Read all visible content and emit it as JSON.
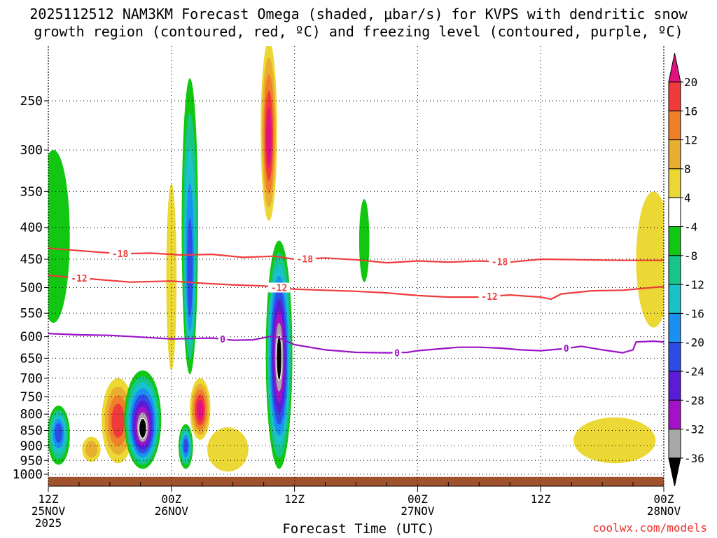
{
  "header": {
    "title_line1": "2025112512 NAM3KM Forecast Omega (shaded, μbar/s) for KVPS with dendritic snow",
    "title_line2": "growth region (contoured, red, ºC) and freezing level (contoured, purple, ºC)"
  },
  "footer": {
    "credit": "coolwx.com/models"
  },
  "chart_data": {
    "type": "time-height contour",
    "title": "2025112512 NAM3KM Forecast Omega (shaded, μbar/s) for KVPS with dendritic snow growth region (contoured, red, ºC) and freezing level (contoured, purple, ºC)",
    "xlabel": "Forecast Time (UTC)",
    "ylabel": "",
    "x_range_hours": [
      0,
      60
    ],
    "y_axis": {
      "scale": "log-pressure",
      "range": [
        1050,
        200
      ],
      "ticks": [
        250,
        300,
        350,
        400,
        450,
        500,
        550,
        600,
        650,
        700,
        750,
        800,
        850,
        900,
        950,
        1000
      ]
    },
    "x_ticks": [
      {
        "hour": 0,
        "l1": "12Z",
        "l2": "25NOV",
        "l3": "2025"
      },
      {
        "hour": 12,
        "l1": "00Z",
        "l2": "26NOV",
        "l3": ""
      },
      {
        "hour": 24,
        "l1": "12Z",
        "l2": "",
        "l3": ""
      },
      {
        "hour": 36,
        "l1": "00Z",
        "l2": "27NOV",
        "l3": ""
      },
      {
        "hour": 48,
        "l1": "12Z",
        "l2": "",
        "l3": ""
      },
      {
        "hour": 60,
        "l1": "00Z",
        "l2": "28NOV",
        "l3": ""
      }
    ],
    "colorbar": {
      "levels": [
        20,
        16,
        12,
        8,
        4,
        -4,
        -8,
        -12,
        -16,
        -20,
        -24,
        -28,
        -32,
        -36
      ],
      "bins": [
        {
          "range": ">20",
          "color": "#e0127f"
        },
        {
          "range": "16 to 20",
          "color": "#f13a3a"
        },
        {
          "range": "12 to 16",
          "color": "#f07f2a"
        },
        {
          "range": "8 to 12",
          "color": "#e9ae2f"
        },
        {
          "range": "4 to 8",
          "color": "#ebd835"
        },
        {
          "range": "-4 to 4",
          "color": "#ffffff"
        },
        {
          "range": "-8 to -4",
          "color": "#11c711"
        },
        {
          "range": "-12 to -8",
          "color": "#17c489"
        },
        {
          "range": "-16 to -12",
          "color": "#19c2c8"
        },
        {
          "range": "-20 to -16",
          "color": "#1a90f0"
        },
        {
          "range": "-24 to -20",
          "color": "#2d4de6"
        },
        {
          "range": "-28 to -24",
          "color": "#5a1cd6"
        },
        {
          "range": "-32 to -28",
          "color": "#a312c7"
        },
        {
          "range": "-36 to -32",
          "color": "#a8a8a8"
        },
        {
          "range": "<-36",
          "color": "#000000"
        }
      ]
    },
    "omega_features": [
      {
        "hour": 0.5,
        "pressure": 460,
        "value": -6,
        "hw_hours": 1.6,
        "h_top_hpa": 300,
        "h_bot_hpa": 570
      },
      {
        "hour": 1.0,
        "pressure": 855,
        "value": -21,
        "hw_hours": 1.1,
        "h_top_hpa": 775,
        "h_bot_hpa": 965
      },
      {
        "hour": 4.2,
        "pressure": 910,
        "value": 10,
        "hw_hours": 0.9,
        "h_top_hpa": 870,
        "h_bot_hpa": 955
      },
      {
        "hour": 6.8,
        "pressure": 820,
        "value": 17,
        "hw_hours": 1.6,
        "h_top_hpa": 700,
        "h_bot_hpa": 960
      },
      {
        "hour": 9.2,
        "pressure": 850,
        "value": -40,
        "hw_hours": 1.8,
        "h_top_hpa": 680,
        "h_bot_hpa": 980
      },
      {
        "hour": 12.0,
        "pressure": 440,
        "value": 6,
        "hw_hours": 0.5,
        "h_top_hpa": 340,
        "h_bot_hpa": 680
      },
      {
        "hour": 13.8,
        "pressure": 500,
        "value": -24,
        "hw_hours": 0.8,
        "h_top_hpa": 230,
        "h_bot_hpa": 690
      },
      {
        "hour": 13.4,
        "pressure": 900,
        "value": -22,
        "hw_hours": 0.7,
        "h_top_hpa": 830,
        "h_bot_hpa": 980
      },
      {
        "hour": 14.8,
        "pressure": 790,
        "value": 21,
        "hw_hours": 1.0,
        "h_top_hpa": 700,
        "h_bot_hpa": 880
      },
      {
        "hour": 17.5,
        "pressure": 930,
        "value": 7,
        "hw_hours": 2.0,
        "h_top_hpa": 840,
        "h_bot_hpa": 990
      },
      {
        "hour": 21.5,
        "pressure": 290,
        "value": 22,
        "hw_hours": 0.8,
        "h_top_hpa": 200,
        "h_bot_hpa": 390
      },
      {
        "hour": 22.5,
        "pressure": 650,
        "value": -40,
        "hw_hours": 1.3,
        "h_top_hpa": 420,
        "h_bot_hpa": 980
      },
      {
        "hour": 30.8,
        "pressure": 450,
        "value": -6,
        "hw_hours": 0.5,
        "h_top_hpa": 360,
        "h_bot_hpa": 490
      },
      {
        "hour": 55.2,
        "pressure": 870,
        "value": 6,
        "hw_hours": 4.0,
        "h_top_hpa": 810,
        "h_bot_hpa": 960
      },
      {
        "hour": 59.0,
        "pressure": 440,
        "value": 6,
        "hw_hours": 1.7,
        "h_top_hpa": 350,
        "h_bot_hpa": 580
      }
    ],
    "series": [
      {
        "name": "-18 °C isotherm",
        "color": "#ef3b3b",
        "points": [
          [
            0,
            432
          ],
          [
            3,
            436
          ],
          [
            7,
            441
          ],
          [
            10,
            440
          ],
          [
            13,
            443
          ],
          [
            16,
            442
          ],
          [
            19,
            447
          ],
          [
            22,
            445
          ],
          [
            24,
            450
          ],
          [
            27,
            448
          ],
          [
            30,
            451
          ],
          [
            33,
            456
          ],
          [
            36,
            453
          ],
          [
            39,
            455
          ],
          [
            42,
            453
          ],
          [
            45,
            455
          ],
          [
            48,
            450
          ],
          [
            52,
            451
          ],
          [
            56,
            452
          ],
          [
            60,
            452
          ]
        ],
        "labels": [
          {
            "hour": 7,
            "text": "-18"
          },
          {
            "hour": 25,
            "text": "-18"
          },
          {
            "hour": 44,
            "text": "-18"
          }
        ]
      },
      {
        "name": "-12 °C isotherm",
        "color": "#ef3b3b",
        "points": [
          [
            0,
            478
          ],
          [
            4,
            484
          ],
          [
            8,
            490
          ],
          [
            12,
            488
          ],
          [
            15,
            492
          ],
          [
            18,
            495
          ],
          [
            21,
            497
          ],
          [
            24,
            503
          ],
          [
            27,
            505
          ],
          [
            30,
            507
          ],
          [
            33,
            510
          ],
          [
            36,
            515
          ],
          [
            39,
            518
          ],
          [
            42,
            518
          ],
          [
            45,
            514
          ],
          [
            48,
            518
          ],
          [
            49,
            522
          ],
          [
            50,
            512
          ],
          [
            53,
            506
          ],
          [
            56,
            505
          ],
          [
            60,
            498
          ]
        ],
        "labels": [
          {
            "hour": 3,
            "text": "-12"
          },
          {
            "hour": 22.5,
            "text": "-12"
          },
          {
            "hour": 43,
            "text": "-12"
          }
        ]
      },
      {
        "name": "0 °C freezing level",
        "color": "#9b13c9",
        "points": [
          [
            0,
            593
          ],
          [
            3,
            596
          ],
          [
            6,
            597
          ],
          [
            9,
            601
          ],
          [
            12,
            605
          ],
          [
            14,
            604
          ],
          [
            16,
            603
          ],
          [
            18,
            608
          ],
          [
            20,
            607
          ],
          [
            22,
            598
          ],
          [
            24,
            618
          ],
          [
            27,
            630
          ],
          [
            30,
            636
          ],
          [
            33,
            637
          ],
          [
            35,
            636
          ],
          [
            36,
            632
          ],
          [
            38,
            628
          ],
          [
            40,
            624
          ],
          [
            42,
            624
          ],
          [
            44,
            626
          ],
          [
            46,
            630
          ],
          [
            48,
            632
          ],
          [
            50,
            628
          ],
          [
            52,
            622
          ],
          [
            54,
            630
          ],
          [
            56,
            637
          ],
          [
            57,
            630
          ],
          [
            57.3,
            612
          ],
          [
            59,
            610
          ],
          [
            60,
            612
          ]
        ],
        "labels": [
          {
            "hour": 17,
            "text": "0"
          },
          {
            "hour": 34,
            "text": "0"
          },
          {
            "hour": 50.5,
            "text": "0"
          }
        ]
      }
    ],
    "ground": {
      "color": "#a0522d",
      "pressure_top": 1010,
      "pressure_bottom": 1050
    }
  }
}
